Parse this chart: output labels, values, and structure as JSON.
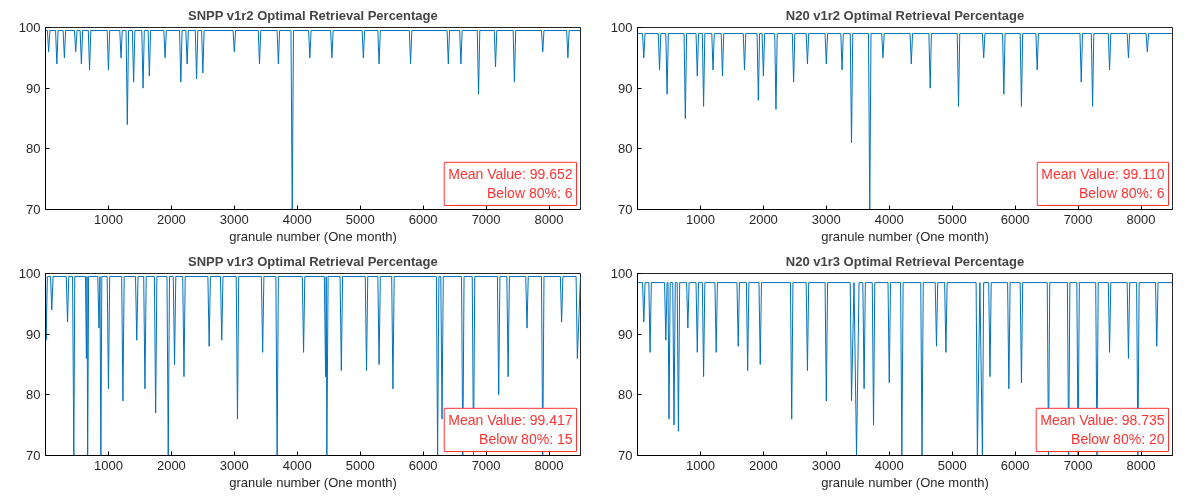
{
  "chart_data": [
    {
      "type": "line",
      "title": "SNPP v1r2 Optimal Retrieval Percentage",
      "xlabel": "granule number (One month)",
      "xlim": [
        0,
        8500
      ],
      "xticks": [
        1000,
        2000,
        3000,
        4000,
        5000,
        6000,
        7000,
        8000
      ],
      "ylim": [
        70,
        100
      ],
      "yticks": [
        70,
        80,
        90,
        100
      ],
      "grid": false,
      "annotations": [
        "Mean Value: 99.652",
        "Below 80%: 6"
      ],
      "series": [
        {
          "color": "#0072bd",
          "x": [
            0,
            30,
            50,
            70,
            160,
            180,
            200,
            280,
            300,
            320,
            460,
            480,
            500,
            550,
            570,
            590,
            680,
            700,
            720,
            980,
            1000,
            1020,
            1180,
            1200,
            1220,
            1280,
            1300,
            1320,
            1380,
            1400,
            1420,
            1530,
            1550,
            1570,
            1630,
            1650,
            1670,
            1880,
            1900,
            1920,
            2130,
            2150,
            2170,
            2230,
            2250,
            2270,
            2380,
            2400,
            2420,
            2480,
            2500,
            2520,
            2980,
            3000,
            3020,
            3380,
            3400,
            3420,
            3680,
            3700,
            3720,
            3900,
            3920,
            3940,
            4180,
            4200,
            4220,
            4530,
            4550,
            4570,
            5030,
            5050,
            5070,
            5280,
            5300,
            5320,
            5780,
            5800,
            5820,
            6380,
            6400,
            6420,
            6580,
            6600,
            6620,
            6860,
            6880,
            6900,
            7130,
            7150,
            7170,
            7430,
            7450,
            7470,
            7880,
            7900,
            7920,
            8280,
            8300,
            8320,
            8500
          ],
          "values": [
            99.5,
            99.5,
            96,
            99.5,
            99.5,
            94,
            99.5,
            99.5,
            95,
            99.5,
            99.5,
            96,
            99.5,
            99.5,
            94,
            99.5,
            99.5,
            93,
            99.5,
            99.5,
            93,
            99.5,
            99.5,
            95,
            99.5,
            99.5,
            84,
            99.5,
            99.5,
            91,
            99.5,
            99.5,
            90,
            99.5,
            99.5,
            92,
            99.5,
            99.5,
            95,
            99.5,
            99.5,
            91,
            99.5,
            99.5,
            94,
            99.5,
            99.5,
            91.5,
            99.5,
            99.5,
            92.5,
            99.5,
            99.5,
            96,
            99.5,
            99.5,
            94,
            99.5,
            99.5,
            94,
            99.5,
            99.5,
            70,
            99.5,
            99.5,
            95,
            99.5,
            99.5,
            95,
            99.5,
            99.5,
            95,
            99.5,
            99.5,
            94,
            99.5,
            99.5,
            94,
            99.5,
            99.5,
            94,
            99.5,
            99.5,
            94,
            99.5,
            99.5,
            89,
            99.5,
            99.5,
            93.5,
            99.5,
            99.5,
            91,
            99.5,
            99.5,
            96,
            99.5,
            99.5,
            95,
            99.5,
            99.5
          ]
        }
      ]
    },
    {
      "type": "line",
      "title": "N20 v1r2 Optimal Retrieval Percentage",
      "xlabel": "granule number (One month)",
      "xlim": [
        0,
        8500
      ],
      "xticks": [
        1000,
        2000,
        3000,
        4000,
        5000,
        6000,
        7000,
        8000
      ],
      "ylim": [
        70,
        100
      ],
      "yticks": [
        70,
        80,
        90,
        100
      ],
      "grid": false,
      "annotations": [
        "Mean Value: 99.110",
        "Below 80%: 6"
      ],
      "series": [
        {
          "color": "#0072bd",
          "x": [
            0,
            80,
            100,
            120,
            330,
            350,
            370,
            450,
            470,
            490,
            740,
            760,
            780,
            930,
            950,
            970,
            1030,
            1050,
            1070,
            1180,
            1200,
            1220,
            1330,
            1350,
            1370,
            1680,
            1700,
            1720,
            1900,
            1920,
            1940,
            1980,
            2000,
            2020,
            2180,
            2200,
            2220,
            2460,
            2480,
            2500,
            2680,
            2700,
            2720,
            2980,
            3000,
            3020,
            3230,
            3250,
            3270,
            3380,
            3400,
            3420,
            3670,
            3690,
            3710,
            3880,
            3900,
            3920,
            4330,
            4350,
            4370,
            4630,
            4650,
            4670,
            5080,
            5100,
            5120,
            5480,
            5500,
            5520,
            5800,
            5820,
            5840,
            6080,
            6100,
            6120,
            6330,
            6350,
            6370,
            7030,
            7050,
            7070,
            7210,
            7230,
            7250,
            7480,
            7500,
            7520,
            7780,
            7800,
            7820,
            8080,
            8100,
            8120,
            8500
          ],
          "values": [
            99,
            99,
            95,
            99,
            99,
            93,
            99,
            99,
            89,
            99,
            99,
            85,
            99,
            99,
            92,
            99,
            99,
            87,
            99,
            99,
            93,
            99,
            99,
            92,
            99,
            99,
            93,
            99,
            99,
            88,
            99,
            99,
            92,
            99,
            99,
            86.5,
            99,
            99,
            91,
            99,
            99,
            94,
            99,
            99,
            94,
            99,
            99,
            93,
            99,
            99,
            81,
            99,
            99,
            70,
            99,
            99,
            95,
            99,
            99,
            94,
            99,
            99,
            90,
            99,
            99,
            87,
            99,
            99,
            95,
            99,
            99,
            89,
            99,
            99,
            87,
            99,
            99,
            93,
            99,
            99,
            91,
            99,
            99,
            87,
            99,
            99,
            93,
            99,
            99,
            95,
            99,
            99,
            96,
            99,
            99
          ]
        }
      ]
    },
    {
      "type": "line",
      "title": "SNPP v1r3 Optimal Retrieval Percentage",
      "xlabel": "granule number (One month)",
      "xlim": [
        0,
        8500
      ],
      "xticks": [
        1000,
        2000,
        3000,
        4000,
        5000,
        6000,
        7000,
        8000
      ],
      "ylim": [
        70,
        100
      ],
      "yticks": [
        70,
        80,
        90,
        100
      ],
      "grid": false,
      "annotations": [
        "Mean Value: 99.417",
        "Below 80%: 15"
      ],
      "series": [
        {
          "color": "#0072bd",
          "x": [
            0,
            10,
            30,
            80,
            100,
            120,
            330,
            350,
            370,
            430,
            450,
            465,
            635,
            650,
            660,
            670,
            685,
            830,
            850,
            865,
            880,
            895,
            980,
            1000,
            1020,
            1210,
            1230,
            1250,
            1430,
            1450,
            1470,
            1560,
            1580,
            1600,
            1730,
            1750,
            1770,
            1930,
            1950,
            1970,
            2030,
            2050,
            2070,
            2180,
            2200,
            2220,
            2580,
            2600,
            2620,
            2780,
            2800,
            2820,
            3030,
            3050,
            3070,
            3430,
            3450,
            3470,
            3660,
            3680,
            3700,
            4080,
            4100,
            4120,
            4430,
            4450,
            4460,
            4470,
            4490,
            4680,
            4700,
            4720,
            5080,
            5100,
            5120,
            5280,
            5300,
            5320,
            5500,
            5520,
            5540,
            6210,
            6230,
            6250,
            6280,
            6300,
            6320,
            6610,
            6630,
            6650,
            6780,
            6800,
            6820,
            7180,
            7200,
            7220,
            7330,
            7350,
            7370,
            7630,
            7650,
            7670,
            7880,
            7900,
            7920,
            8180,
            8200,
            8220,
            8430,
            8450,
            8500
          ],
          "values": [
            99.5,
            89,
            99.5,
            99.5,
            94,
            99.5,
            99.5,
            92,
            99.5,
            99.5,
            70,
            99.5,
            99.5,
            86,
            99.5,
            70,
            99.5,
            99.5,
            91,
            99.5,
            70,
            99.5,
            99.5,
            81,
            99.5,
            99.5,
            79,
            99.5,
            99.5,
            89,
            99.5,
            99.5,
            81,
            99.5,
            99.5,
            77,
            99.5,
            99.5,
            70,
            99.5,
            99.5,
            85,
            99.5,
            99.5,
            83,
            99.5,
            99.5,
            88,
            99.5,
            99.5,
            89,
            99.5,
            99.5,
            76,
            99.5,
            99.5,
            87,
            99.5,
            99.5,
            70,
            99.5,
            99.5,
            87,
            99.5,
            99.5,
            83,
            99.5,
            70,
            99.5,
            99.5,
            84,
            99.5,
            99.5,
            84,
            99.5,
            99.5,
            85,
            99.5,
            99.5,
            81,
            99.5,
            99.5,
            70,
            99.5,
            99.5,
            76,
            99.5,
            99.5,
            70,
            99.5,
            99.5,
            70,
            99.5,
            99.5,
            80,
            99.5,
            99.5,
            83,
            99.5,
            99.5,
            91,
            99.5,
            99.5,
            70,
            99.5,
            99.5,
            92,
            99.5,
            99.5,
            86,
            99.5
          ]
        }
      ]
    },
    {
      "type": "line",
      "title": "N20 v1r3 Optimal Retrieval Percentage",
      "xlabel": "granule number (One month)",
      "xlim": [
        0,
        8500
      ],
      "xticks": [
        1000,
        2000,
        3000,
        4000,
        5000,
        6000,
        7000,
        8000
      ],
      "ylim": [
        70,
        100
      ],
      "yticks": [
        70,
        80,
        90,
        100
      ],
      "grid": false,
      "annotations": [
        "Mean Value: 98.735",
        "Below 80%: 20"
      ],
      "series": [
        {
          "color": "#0072bd",
          "x": [
            0,
            80,
            100,
            120,
            180,
            200,
            220,
            430,
            450,
            470,
            485,
            500,
            520,
            560,
            580,
            600,
            630,
            650,
            670,
            780,
            800,
            820,
            930,
            950,
            970,
            1030,
            1050,
            1070,
            1230,
            1250,
            1270,
            1580,
            1600,
            1620,
            1730,
            1750,
            1770,
            1930,
            1950,
            1970,
            2430,
            2450,
            2470,
            2680,
            2700,
            2720,
            2980,
            3000,
            3020,
            3380,
            3400,
            3440,
            3480,
            3520,
            3580,
            3600,
            3620,
            3730,
            3750,
            3770,
            3980,
            4000,
            4020,
            4180,
            4200,
            4220,
            4500,
            4520,
            4540,
            4730,
            4750,
            4770,
            4880,
            4900,
            4920,
            5380,
            5400,
            5440,
            5480,
            5500,
            5580,
            5600,
            5620,
            5880,
            5900,
            5920,
            6080,
            6100,
            6120,
            6510,
            6530,
            6550,
            6830,
            6850,
            6870,
            6980,
            7000,
            7020,
            7280,
            7300,
            7320,
            7480,
            7500,
            7520,
            7780,
            7800,
            7820,
            7930,
            7950,
            7970,
            8230,
            8250,
            8270,
            8500
          ],
          "values": [
            98.5,
            98.5,
            92,
            98.5,
            98.5,
            87,
            98.5,
            98.5,
            89,
            98.5,
            98.5,
            76,
            98.5,
            98.5,
            75,
            98.5,
            98.5,
            74,
            98.5,
            98.5,
            91,
            98.5,
            98.5,
            87,
            98.5,
            98.5,
            83,
            98.5,
            98.5,
            87,
            98.5,
            98.5,
            88,
            98.5,
            98.5,
            84,
            98.5,
            98.5,
            85,
            98.5,
            98.5,
            76,
            98.5,
            98.5,
            84,
            98.5,
            98.5,
            79,
            98.5,
            98.5,
            79,
            98.5,
            70,
            98.5,
            98.5,
            81,
            98.5,
            98.5,
            75,
            98.5,
            98.5,
            82,
            98.5,
            98.5,
            70,
            98.5,
            98.5,
            70,
            98.5,
            98.5,
            88,
            98.5,
            98.5,
            87,
            98.5,
            98.5,
            70,
            98.5,
            70,
            98.5,
            98.5,
            83,
            98.5,
            98.5,
            81,
            98.5,
            98.5,
            82,
            98.5,
            98.5,
            70,
            98.5,
            98.5,
            70,
            98.5,
            98.5,
            70,
            98.5,
            98.5,
            70,
            98.5,
            98.5,
            87,
            98.5,
            98.5,
            86,
            98.5,
            98.5,
            70,
            98.5,
            98.5,
            88,
            98.5,
            98.5
          ]
        }
      ]
    }
  ]
}
